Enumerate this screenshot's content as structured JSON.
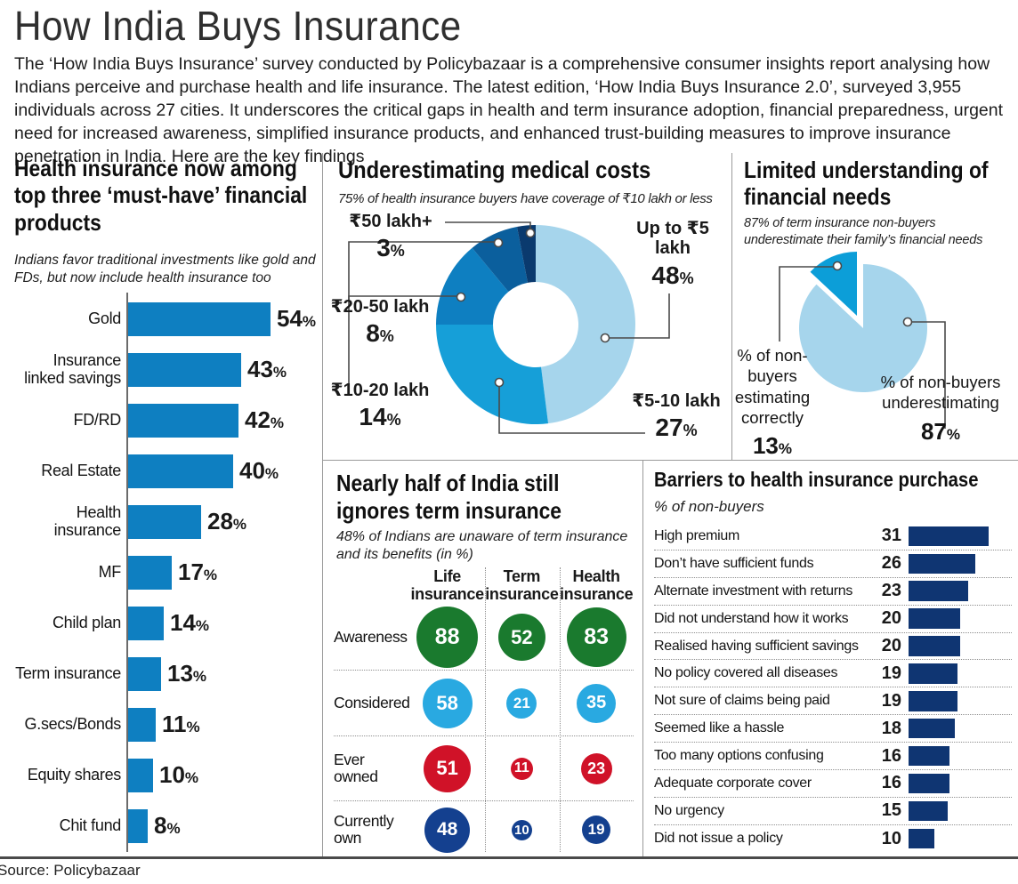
{
  "header": {
    "title": "How India Buys Insurance",
    "intro": "The ‘How India Buys Insurance’ survey conducted by Policybazaar is a comprehensive consumer insights report analysing how Indians perceive and purchase health and life insurance. The latest edition, ‘How India Buys Insurance 2.0’, surveyed 3,955 individuals across 27 cities. It underscores the critical gaps in health and term insurance adoption, financial preparedness, urgent need for increased awareness, simplified insurance products, and enhanced trust-building measures to improve insurance penetration in India. Here are the key findings"
  },
  "source": "Source: Policybazaar",
  "chart_data": [
    {
      "type": "bar",
      "orientation": "horizontal",
      "title": "Health insurance now among top three ‘must-have’ financial products",
      "subtitle": "Indians favor traditional investments like gold and FDs, but now include health insurance too",
      "unit": "%",
      "categories": [
        "Gold",
        "Insurance linked savings",
        "FD/RD",
        "Real Estate",
        "Health insurance",
        "MF",
        "Child plan",
        "Term insurance",
        "G.secs/Bonds",
        "Equity shares",
        "Chit fund"
      ],
      "values": [
        54,
        43,
        42,
        40,
        28,
        17,
        14,
        13,
        11,
        10,
        8
      ],
      "bar_color": "#0e7fc1",
      "xlim": [
        0,
        60
      ]
    },
    {
      "type": "pie",
      "subtype": "donut",
      "title": "Underestimating medical costs",
      "subtitle": "75% of health insurance buyers have coverage of ₹10 lakh or less",
      "unit": "%",
      "labels": [
        "Up to ₹5 lakh",
        "₹5-10 lakh",
        "₹10-20 lakh",
        "₹20-50 lakh",
        "₹50 lakh+"
      ],
      "values": [
        48,
        27,
        14,
        8,
        3
      ],
      "colors": [
        "#a6d5ec",
        "#169fd8",
        "#0e7fc1",
        "#0b5f9d",
        "#0a3a6e"
      ]
    },
    {
      "type": "pie",
      "title": "Limited understanding of financial needs",
      "subtitle": "87% of term insurance non-buyers underestimate their family’s financial needs",
      "unit": "%",
      "labels": [
        "% of non-buyers underestimating",
        "% of non-buyers estimating correctly"
      ],
      "values": [
        87,
        13
      ],
      "colors": [
        "#a6d5ec",
        "#0c9ed8"
      ]
    },
    {
      "type": "table",
      "title": "Nearly half of India still ignores term insurance",
      "subtitle": "48% of Indians are unaware of term insurance and its benefits (in %)",
      "columns": [
        "Life insurance",
        "Term insurance",
        "Health insurance"
      ],
      "rows": [
        {
          "label": "Awareness",
          "values": [
            88,
            52,
            83
          ],
          "color": "#1a7a2e"
        },
        {
          "label": "Considered",
          "values": [
            58,
            21,
            35
          ],
          "color": "#29a9e1"
        },
        {
          "label": "Ever owned",
          "values": [
            51,
            11,
            23
          ],
          "color": "#d01228"
        },
        {
          "label": "Currently own",
          "values": [
            48,
            10,
            19
          ],
          "color": "#14408f"
        }
      ]
    },
    {
      "type": "bar",
      "orientation": "horizontal",
      "title": "Barriers to health insurance purchase",
      "subtitle": "% of non-buyers",
      "categories": [
        "High premium",
        "Don’t have sufficient funds",
        "Alternate investment with returns",
        "Did not understand how it works",
        "Realised having sufficient savings",
        "No policy covered all diseases",
        "Not sure of claims being paid",
        "Seemed like a hassle",
        "Too many options confusing",
        "Adequate corporate cover",
        "No urgency",
        "Did not issue a policy"
      ],
      "values": [
        31,
        26,
        23,
        20,
        20,
        19,
        19,
        18,
        16,
        16,
        15,
        10
      ],
      "bar_color": "#0f3572",
      "xlim": [
        0,
        31
      ]
    }
  ]
}
